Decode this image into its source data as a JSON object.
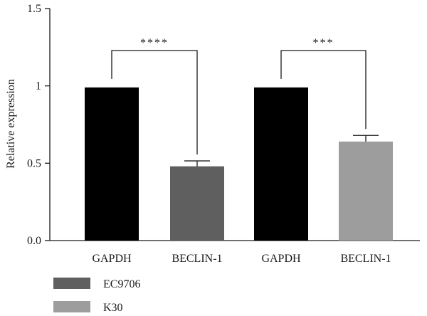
{
  "chart_data": {
    "type": "bar",
    "ylabel": "Relative expression",
    "xlabel": "",
    "ylim": [
      0,
      1.5
    ],
    "yticks": [
      "0.0",
      "0.5",
      "1",
      "1.5"
    ],
    "yticks_values": [
      0,
      0.5,
      1,
      1.5
    ],
    "categories": [
      "GAPDH",
      "BECLIN-1",
      "GAPDH",
      "BECLIN-1"
    ],
    "bars": [
      {
        "category": "GAPDH",
        "group": "EC9706",
        "value": 0.99,
        "error": 0,
        "color": "#000000"
      },
      {
        "category": "BECLIN-1",
        "group": "EC9706",
        "value": 0.48,
        "error": 0.035,
        "color": "#5f5f5f"
      },
      {
        "category": "GAPDH",
        "group": "K30",
        "value": 0.99,
        "error": 0,
        "color": "#000000"
      },
      {
        "category": "BECLIN-1",
        "group": "K30",
        "value": 0.64,
        "error": 0.04,
        "color": "#9d9d9d"
      }
    ],
    "significance": [
      {
        "from": 0,
        "to": 1,
        "label": "****"
      },
      {
        "from": 2,
        "to": 3,
        "label": "***"
      }
    ],
    "legend": {
      "placement": "bottom-left",
      "entries": [
        {
          "name": "EC9706",
          "color": "#5f5f5f"
        },
        {
          "name": "K30",
          "color": "#9d9d9d"
        }
      ]
    },
    "grid": false
  }
}
